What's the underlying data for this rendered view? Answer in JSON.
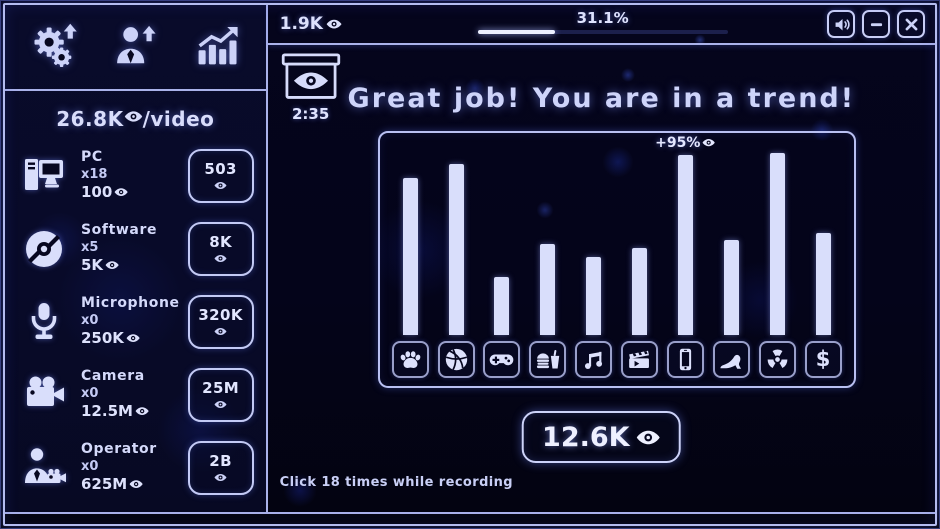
{
  "colors": {
    "accent": "#d9defb",
    "border": "#b4bcf0",
    "background": "#04040f",
    "glow_blue": "#2a3ae0",
    "bar": "#d9defb"
  },
  "toolbar": {
    "buttons": [
      {
        "icon": "gears-upgrade-icon"
      },
      {
        "icon": "staff-upgrade-icon"
      },
      {
        "icon": "stats-trend-icon"
      }
    ]
  },
  "topbar": {
    "views": "1.9K",
    "progress_label": "31.1%",
    "progress_percent": 31.1,
    "window_buttons": [
      {
        "icon": "sound-icon"
      },
      {
        "icon": "minimize-icon"
      },
      {
        "icon": "close-icon"
      }
    ]
  },
  "sidebar": {
    "income_value": "26.8K",
    "income_suffix": "/video",
    "items": [
      {
        "icon": "pc-icon",
        "name": "PC",
        "count": "x18",
        "income": "100",
        "price": "503"
      },
      {
        "icon": "software-disc-icon",
        "name": "Software",
        "count": "x5",
        "income": "5K",
        "price": "8K"
      },
      {
        "icon": "microphone-icon",
        "name": "Microphone",
        "count": "x0",
        "income": "250K",
        "price": "320K"
      },
      {
        "icon": "video-camera-icon",
        "name": "Camera",
        "count": "x0",
        "income": "12.5M",
        "price": "25M"
      },
      {
        "icon": "operator-icon",
        "name": "Operator",
        "count": "x0",
        "income": "625M",
        "price": "2B"
      }
    ]
  },
  "main": {
    "timer": "2:35",
    "recording_icon": "recording-box-eye-icon",
    "title": "Great job! You are in a trend!",
    "reward": "12.6K",
    "hint": "Click 18 times while recording"
  },
  "chart_data": {
    "type": "bar",
    "categories": [
      "pets",
      "sports",
      "games",
      "food",
      "music",
      "movies",
      "phone",
      "fashion",
      "danger",
      "money"
    ],
    "values": [
      86,
      94,
      32,
      50,
      43,
      48,
      99,
      52,
      100,
      56
    ],
    "ylim": [
      0,
      100
    ],
    "grid": false,
    "legend": false,
    "annotations": [
      {
        "index": 6,
        "text": "+95%",
        "icon": "eye-icon"
      }
    ]
  }
}
